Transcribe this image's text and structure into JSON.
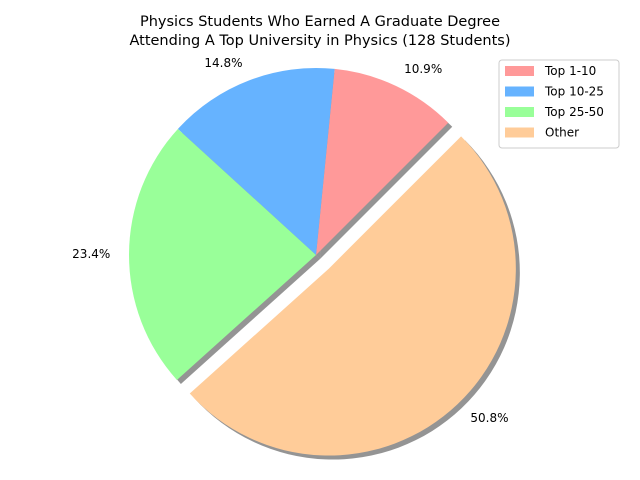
{
  "chart_data": {
    "type": "pie",
    "title_lines": [
      "Physics Students Who Earned A Graduate Degree",
      "Attending A Top University in Physics (128 Students)"
    ],
    "categories": [
      "Top 1-10",
      "Top 10-25",
      "Top 25-50",
      "Other"
    ],
    "values": [
      10.9,
      14.8,
      23.4,
      50.8
    ],
    "value_labels": [
      "10.9%",
      "14.8%",
      "23.4%",
      "50.8%"
    ],
    "colors": [
      "#ff9999",
      "#66b3ff",
      "#99ff99",
      "#ffcc99"
    ],
    "exploded": [
      "Other"
    ],
    "shadow": true,
    "start_angle_deg": 45,
    "direction": "counterclockwise",
    "legend_position": "top-right"
  }
}
